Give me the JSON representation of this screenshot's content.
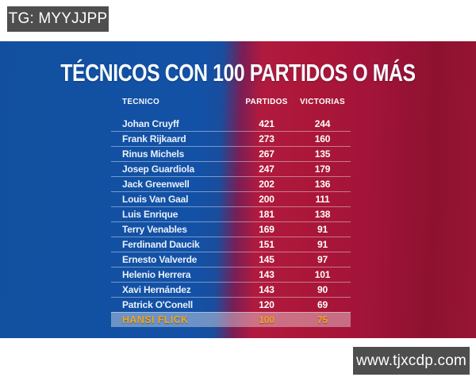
{
  "badges": {
    "top_left": "TG: MYYJJPP",
    "bottom_right": "www.tjxcdp.com"
  },
  "infographic": {
    "title": "TÉCNICOS CON 100 PARTIDOS O MÁS",
    "columns": {
      "coach": "TÉCNICO",
      "matches": "PARTIDOS",
      "wins": "VICTORIAS"
    },
    "rows": [
      {
        "coach": "Johan Cruyff",
        "matches": "421",
        "wins": "244",
        "highlight": false
      },
      {
        "coach": "Frank Rijkaard",
        "matches": "273",
        "wins": "160",
        "highlight": false
      },
      {
        "coach": "Rinus Michels",
        "matches": "267",
        "wins": "135",
        "highlight": false
      },
      {
        "coach": "Josep Guardiola",
        "matches": "247",
        "wins": "179",
        "highlight": false
      },
      {
        "coach": "Jack Greenwell",
        "matches": "202",
        "wins": "136",
        "highlight": false
      },
      {
        "coach": "Louis Van Gaal",
        "matches": "200",
        "wins": "111",
        "highlight": false
      },
      {
        "coach": "Luis Enrique",
        "matches": "181",
        "wins": "138",
        "highlight": false
      },
      {
        "coach": "Terry Venables",
        "matches": "169",
        "wins": "91",
        "highlight": false
      },
      {
        "coach": "Ferdinand Daucik",
        "matches": "151",
        "wins": "91",
        "highlight": false
      },
      {
        "coach": "Ernesto Valverde",
        "matches": "145",
        "wins": "97",
        "highlight": false
      },
      {
        "coach": "Helenio Herrera",
        "matches": "143",
        "wins": "101",
        "highlight": false
      },
      {
        "coach": "Xavi Hernández",
        "matches": "143",
        "wins": "90",
        "highlight": false
      },
      {
        "coach": "Patrick O'Conell",
        "matches": "120",
        "wins": "69",
        "highlight": false
      },
      {
        "coach": "HANSI FLICK",
        "matches": "100",
        "wins": "75",
        "highlight": true
      }
    ],
    "colors": {
      "blue": "#1351a6",
      "red": "#aa1638",
      "red_dark": "#8e1130",
      "highlight_text": "#f2a51a",
      "badge_bg": "#4e4e4e"
    }
  },
  "chart_data": {
    "type": "table",
    "title": "TÉCNICOS CON 100 PARTIDOS O MÁS",
    "columns": [
      "TÉCNICO",
      "PARTIDOS",
      "VICTORIAS"
    ],
    "rows": [
      [
        "Johan Cruyff",
        421,
        244
      ],
      [
        "Frank Rijkaard",
        273,
        160
      ],
      [
        "Rinus Michels",
        267,
        135
      ],
      [
        "Josep Guardiola",
        247,
        179
      ],
      [
        "Jack Greenwell",
        202,
        136
      ],
      [
        "Louis Van Gaal",
        200,
        111
      ],
      [
        "Luis Enrique",
        181,
        138
      ],
      [
        "Terry Venables",
        169,
        91
      ],
      [
        "Ferdinand Daucik",
        151,
        91
      ],
      [
        "Ernesto Valverde",
        145,
        97
      ],
      [
        "Helenio Herrera",
        143,
        101
      ],
      [
        "Xavi Hernández",
        143,
        90
      ],
      [
        "Patrick O'Conell",
        120,
        69
      ],
      [
        "HANSI FLICK",
        100,
        75
      ]
    ],
    "highlighted_row": "HANSI FLICK",
    "legend_position": "none",
    "grid": false
  }
}
